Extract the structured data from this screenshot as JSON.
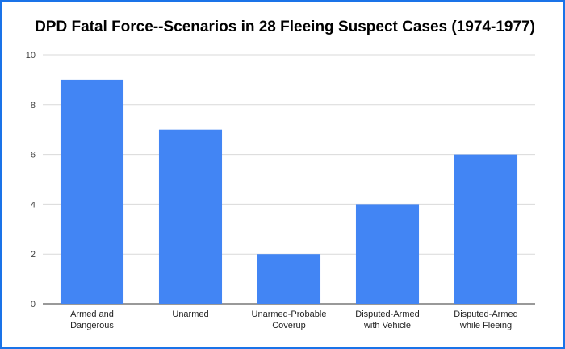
{
  "chart_data": {
    "type": "bar",
    "title": "DPD Fatal Force--Scenarios in 28 Fleeing Suspect Cases (1974-1977)",
    "categories": [
      [
        "Armed and",
        "Dangerous"
      ],
      [
        "Unarmed"
      ],
      [
        "Unarmed-Probable",
        "Coverup"
      ],
      [
        "Disputed-Armed",
        "with Vehicle"
      ],
      [
        "Disputed-Armed",
        "while Fleeing"
      ]
    ],
    "values": [
      9,
      7,
      2,
      4,
      6
    ],
    "ylim": [
      0,
      10
    ],
    "yticks": [
      0,
      2,
      4,
      6,
      8,
      10
    ],
    "xlabel": "",
    "ylabel": "",
    "grid": true,
    "bar_color": "#4285f4",
    "border_color": "#1a73e8"
  }
}
